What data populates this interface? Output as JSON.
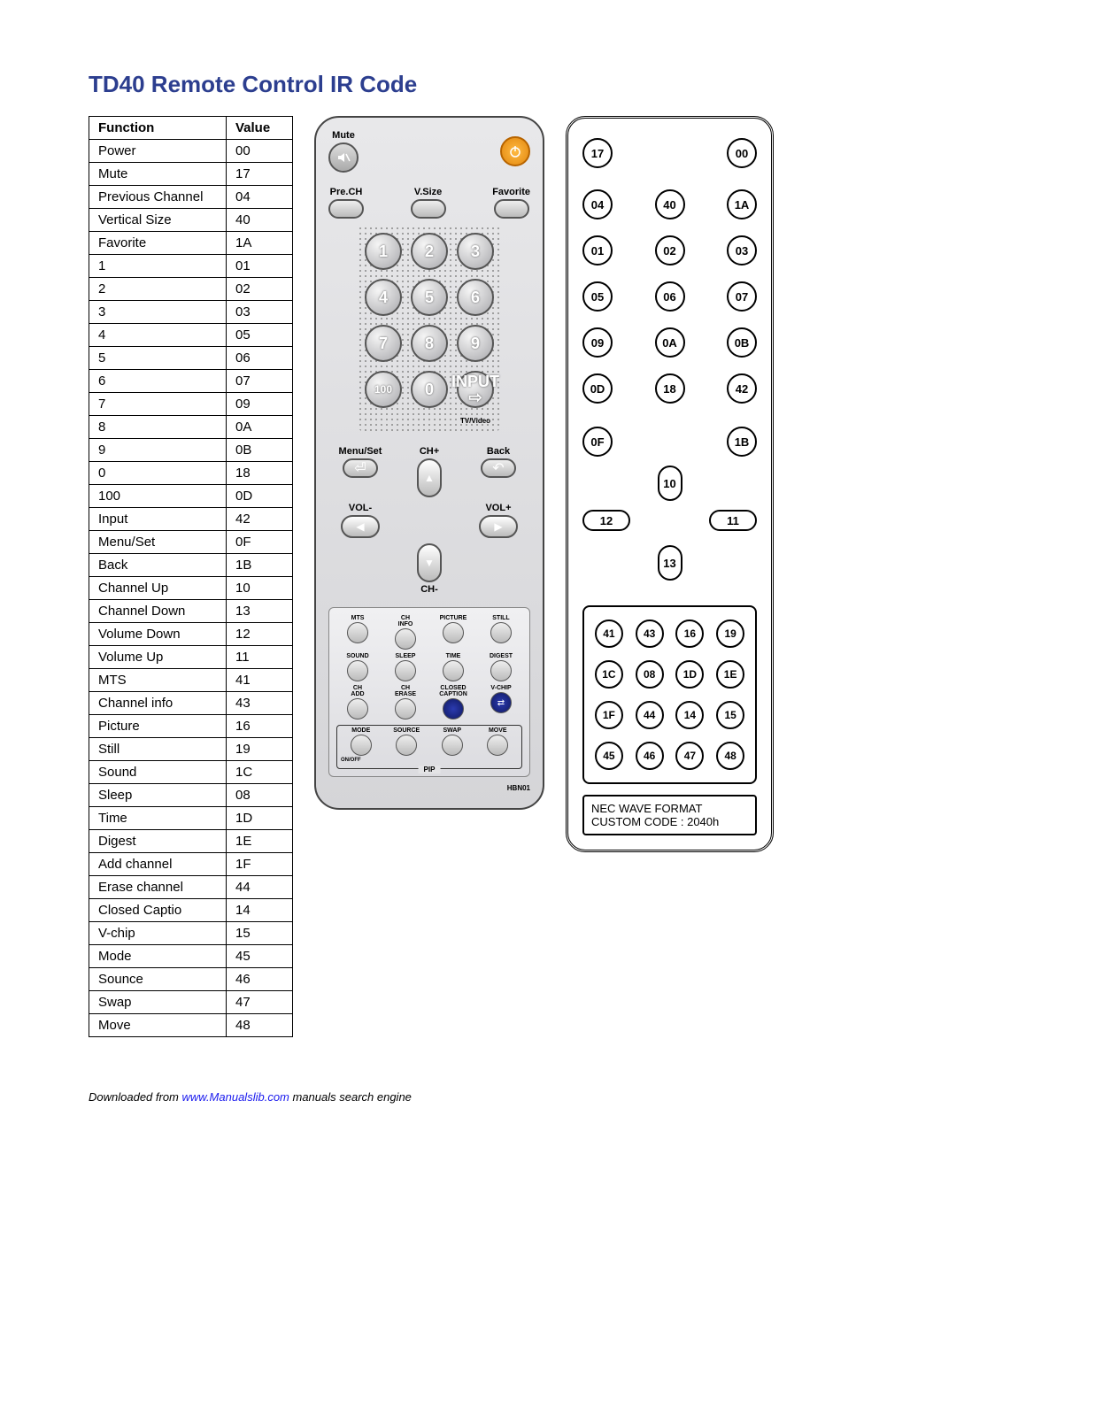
{
  "title": "TD40 Remote Control IR Code",
  "table": {
    "headers": [
      "Function",
      "Value"
    ],
    "rows": [
      [
        "Power",
        "00"
      ],
      [
        "Mute",
        "17"
      ],
      [
        "Previous Channel",
        "04"
      ],
      [
        "Vertical Size",
        "40"
      ],
      [
        "Favorite",
        "1A"
      ],
      [
        "1",
        "01"
      ],
      [
        "2",
        "02"
      ],
      [
        "3",
        "03"
      ],
      [
        "4",
        "05"
      ],
      [
        "5",
        "06"
      ],
      [
        "6",
        "07"
      ],
      [
        "7",
        "09"
      ],
      [
        "8",
        "0A"
      ],
      [
        "9",
        "0B"
      ],
      [
        "0",
        "18"
      ],
      [
        "100",
        "0D"
      ],
      [
        "Input",
        "42"
      ],
      [
        "Menu/Set",
        "0F"
      ],
      [
        "Back",
        "1B"
      ],
      [
        "Channel Up",
        "10"
      ],
      [
        "Channel Down",
        "13"
      ],
      [
        "Volume Down",
        "12"
      ],
      [
        "Volume Up",
        "11"
      ],
      [
        "MTS",
        "41"
      ],
      [
        "Channel info",
        "43"
      ],
      [
        "Picture",
        "16"
      ],
      [
        "Still",
        "19"
      ],
      [
        "Sound",
        "1C"
      ],
      [
        "Sleep",
        "08"
      ],
      [
        "Time",
        "1D"
      ],
      [
        "Digest",
        "1E"
      ],
      [
        "Add channel",
        "1F"
      ],
      [
        "Erase channel",
        "44"
      ],
      [
        "Closed Captio",
        "14"
      ],
      [
        "V-chip",
        "15"
      ],
      [
        "Mode",
        "45"
      ],
      [
        "Sounce",
        "46"
      ],
      [
        "Swap",
        "47"
      ],
      [
        "Move",
        "48"
      ]
    ]
  },
  "remote": {
    "mute_label": "Mute",
    "prech": "Pre.CH",
    "vsize": "V.Size",
    "favorite": "Favorite",
    "digits": [
      "1",
      "2",
      "3",
      "4",
      "5",
      "6",
      "7",
      "8",
      "9",
      "100",
      "0"
    ],
    "input_label": "INPUT",
    "tvvideo": "TV/Video",
    "menuset": "Menu/Set",
    "chplus": "CH+",
    "back": "Back",
    "volminus": "VOL-",
    "volplus": "VOL+",
    "chminus": "CH-",
    "panel": {
      "r1": [
        "MTS",
        "CH\nINFO",
        "PICTURE",
        "STILL"
      ],
      "r2": [
        "SOUND",
        "SLEEP",
        "TIME",
        "DIGEST"
      ],
      "r3": [
        "CH\nADD",
        "CH\nERASE",
        "CLOSED\nCAPTION",
        "V-CHIP"
      ],
      "pip": [
        "MODE",
        "SOURCE",
        "SWAP",
        "MOVE"
      ],
      "onoff": "ON/OFF",
      "pip_label": "PIP"
    },
    "model": "HBN01"
  },
  "schematic": {
    "top_pair": [
      "17",
      "00"
    ],
    "row2": [
      "04",
      "40",
      "1A"
    ],
    "digits": [
      [
        "01",
        "02",
        "03"
      ],
      [
        "05",
        "06",
        "07"
      ],
      [
        "09",
        "0A",
        "0B"
      ],
      [
        "0D",
        "18",
        "42"
      ]
    ],
    "menu_back": [
      "0F",
      "1B"
    ],
    "ch_up": "10",
    "vol": [
      "12",
      "11"
    ],
    "ch_down": "13",
    "bottom": [
      [
        "41",
        "43",
        "16",
        "19"
      ],
      [
        "1C",
        "08",
        "1D",
        "1E"
      ],
      [
        "1F",
        "44",
        "14",
        "15"
      ],
      [
        "45",
        "46",
        "47",
        "48"
      ]
    ],
    "footer1": "NEC WAVE FORMAT",
    "footer2": "CUSTOM CODE : 2040h"
  },
  "credit": {
    "pre": "Downloaded from ",
    "link": "www.Manualslib.com",
    "post": " manuals search engine"
  },
  "colors": {
    "title": "#2c3e8f",
    "power": "#f39a1e",
    "input": "#2d3a9e"
  }
}
